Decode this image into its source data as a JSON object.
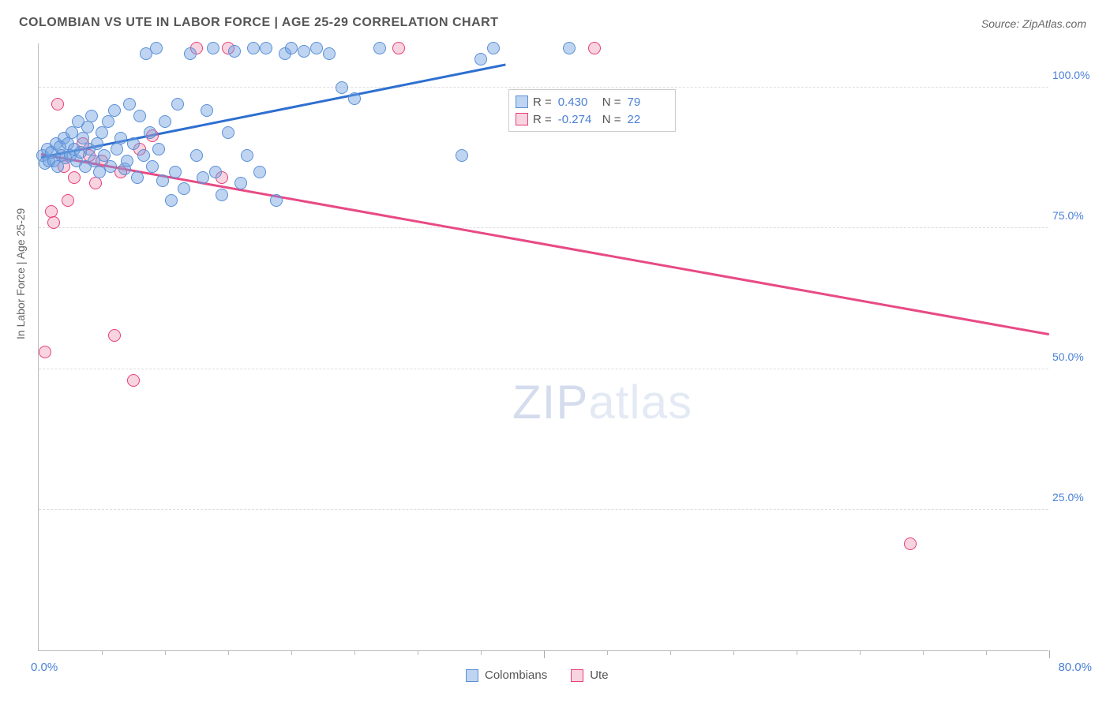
{
  "title": "COLOMBIAN VS UTE IN LABOR FORCE | AGE 25-29 CORRELATION CHART",
  "source": "Source: ZipAtlas.com",
  "y_axis_title": "In Labor Force | Age 25-29",
  "watermark_zip": "ZIP",
  "watermark_atlas": "atlas",
  "chart": {
    "type": "scatter",
    "xlim": [
      0,
      80
    ],
    "ylim": [
      0,
      108
    ],
    "x_label_min": "0.0%",
    "x_label_max": "80.0%",
    "x_tick_step": 5,
    "x_major_step": 40,
    "y_ticks": [
      25,
      50,
      75,
      100
    ],
    "y_tick_labels": [
      "25.0%",
      "50.0%",
      "75.0%",
      "100.0%"
    ],
    "grid_color": "#dddddd",
    "axis_color": "#bbbbbb",
    "background_color": "#ffffff",
    "marker_radius": 8
  },
  "series": {
    "colombians": {
      "label": "Colombians",
      "color_fill": "rgba(110,160,225,0.45)",
      "color_stroke": "#5a8fd6",
      "line_color": "#2e6fd0",
      "R": "0.430",
      "N": "79",
      "trend": {
        "x1": 0.2,
        "y1": 87.5,
        "x2": 37,
        "y2": 104
      },
      "points": [
        [
          0.3,
          88
        ],
        [
          0.5,
          86.5
        ],
        [
          0.7,
          89
        ],
        [
          0.8,
          87
        ],
        [
          1.0,
          88.5
        ],
        [
          1.2,
          87
        ],
        [
          1.4,
          90
        ],
        [
          1.5,
          86
        ],
        [
          1.7,
          89.5
        ],
        [
          1.8,
          88
        ],
        [
          2.0,
          91
        ],
        [
          2.1,
          87.5
        ],
        [
          2.3,
          90
        ],
        [
          2.5,
          88
        ],
        [
          2.6,
          92
        ],
        [
          2.8,
          89
        ],
        [
          3.0,
          87
        ],
        [
          3.1,
          94
        ],
        [
          3.3,
          88.5
        ],
        [
          3.5,
          91
        ],
        [
          3.7,
          86
        ],
        [
          3.9,
          93
        ],
        [
          4.0,
          89
        ],
        [
          4.2,
          95
        ],
        [
          4.4,
          87
        ],
        [
          4.6,
          90
        ],
        [
          4.8,
          85
        ],
        [
          5.0,
          92
        ],
        [
          5.2,
          88
        ],
        [
          5.5,
          94
        ],
        [
          5.7,
          86
        ],
        [
          6.0,
          96
        ],
        [
          6.2,
          89
        ],
        [
          6.5,
          91
        ],
        [
          6.8,
          85.5
        ],
        [
          7.0,
          87
        ],
        [
          7.2,
          97
        ],
        [
          7.5,
          90
        ],
        [
          7.8,
          84
        ],
        [
          8.0,
          95
        ],
        [
          8.3,
          88
        ],
        [
          8.5,
          106
        ],
        [
          8.8,
          92
        ],
        [
          9.0,
          86
        ],
        [
          9.3,
          107
        ],
        [
          9.5,
          89
        ],
        [
          9.8,
          83.5
        ],
        [
          10.0,
          94
        ],
        [
          10.5,
          80
        ],
        [
          10.8,
          85
        ],
        [
          11.0,
          97
        ],
        [
          11.5,
          82
        ],
        [
          12.0,
          106
        ],
        [
          12.5,
          88
        ],
        [
          13.0,
          84
        ],
        [
          13.3,
          96
        ],
        [
          13.8,
          107
        ],
        [
          14.0,
          85
        ],
        [
          14.5,
          81
        ],
        [
          15.0,
          92
        ],
        [
          15.5,
          106.5
        ],
        [
          16.0,
          83
        ],
        [
          16.5,
          88
        ],
        [
          17.0,
          107
        ],
        [
          17.5,
          85
        ],
        [
          18.0,
          107
        ],
        [
          18.8,
          80
        ],
        [
          19.5,
          106
        ],
        [
          20.0,
          107
        ],
        [
          21.0,
          106.5
        ],
        [
          22.0,
          107
        ],
        [
          23.0,
          106
        ],
        [
          24.0,
          100
        ],
        [
          25.0,
          98
        ],
        [
          27.0,
          107
        ],
        [
          33.5,
          88
        ],
        [
          35.0,
          105
        ],
        [
          36.0,
          107
        ],
        [
          42.0,
          107
        ]
      ]
    },
    "ute": {
      "label": "Ute",
      "color_fill": "rgba(235,130,165,0.35)",
      "color_stroke": "#e73f7b",
      "line_color": "#e84a85",
      "R": "-0.274",
      "N": "22",
      "trend": {
        "x1": 0.2,
        "y1": 88,
        "x2": 80,
        "y2": 56
      },
      "points": [
        [
          0.5,
          53
        ],
        [
          1.0,
          78
        ],
        [
          1.2,
          76
        ],
        [
          1.5,
          97
        ],
        [
          2.0,
          86
        ],
        [
          2.3,
          80
        ],
        [
          2.8,
          84
        ],
        [
          3.5,
          90
        ],
        [
          4.0,
          88
        ],
        [
          4.5,
          83
        ],
        [
          5.0,
          87
        ],
        [
          6.0,
          56
        ],
        [
          6.5,
          85
        ],
        [
          7.5,
          48
        ],
        [
          8.0,
          89
        ],
        [
          9.0,
          91.5
        ],
        [
          12.5,
          107
        ],
        [
          14.5,
          84
        ],
        [
          15.0,
          107
        ],
        [
          28.5,
          107
        ],
        [
          44.0,
          107
        ],
        [
          69.0,
          19
        ]
      ]
    }
  }
}
